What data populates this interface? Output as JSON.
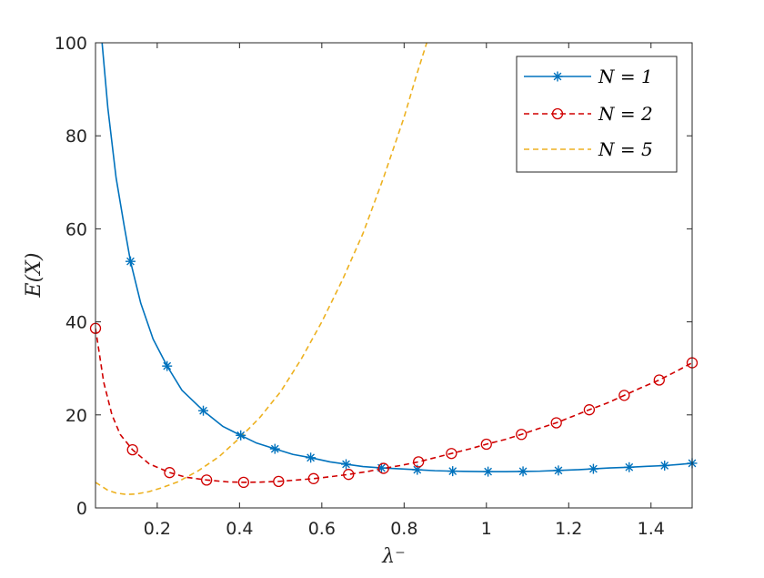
{
  "chart_data": {
    "type": "line",
    "title": "",
    "xlabel": "λ⁻",
    "ylabel": "E(X)",
    "xlim": [
      0.05,
      1.5
    ],
    "ylim": [
      0,
      100
    ],
    "xticks": [
      0.2,
      0.4,
      0.6,
      0.8,
      1,
      1.2,
      1.4
    ],
    "xtick_labels": [
      "0.2",
      "0.4",
      "0.6",
      "0.8",
      "1",
      "1.2",
      "1.4"
    ],
    "yticks": [
      0,
      20,
      40,
      60,
      80,
      100
    ],
    "ytick_labels": [
      "0",
      "20",
      "40",
      "60",
      "80",
      "100"
    ],
    "grid": false,
    "legend_position": "top-right",
    "series": [
      {
        "name": "N = 1",
        "color": "#0072BD",
        "line_style": "solid",
        "marker": "asterisk",
        "x": [
          0.066,
          0.08,
          0.1,
          0.12,
          0.135,
          0.16,
          0.19,
          0.224,
          0.26,
          0.312,
          0.36,
          0.403,
          0.44,
          0.486,
          0.53,
          0.573,
          0.62,
          0.659,
          0.7,
          0.745,
          0.79,
          0.832,
          0.875,
          0.918,
          0.96,
          1.004,
          1.047,
          1.089,
          1.13,
          1.175,
          1.22,
          1.26,
          1.3,
          1.347,
          1.39,
          1.433,
          1.47,
          1.5
        ],
        "y": [
          100,
          86.0,
          71.0,
          60.5,
          53.0,
          44.0,
          36.3,
          30.5,
          25.3,
          20.9,
          17.5,
          15.6,
          14.0,
          12.7,
          11.5,
          10.8,
          9.9,
          9.4,
          8.9,
          8.6,
          8.4,
          8.2,
          8.0,
          7.9,
          7.85,
          7.8,
          7.8,
          7.85,
          7.9,
          8.05,
          8.2,
          8.4,
          8.6,
          8.75,
          8.95,
          9.1,
          9.35,
          9.6
        ],
        "marker_x": [
          0.135,
          0.224,
          0.312,
          0.403,
          0.486,
          0.573,
          0.659,
          0.745,
          0.832,
          0.918,
          1.004,
          1.089,
          1.175,
          1.26,
          1.347,
          1.433,
          1.5
        ],
        "marker_y": [
          53.0,
          30.5,
          20.9,
          15.6,
          12.7,
          10.8,
          9.4,
          8.6,
          8.2,
          7.9,
          7.8,
          7.85,
          8.05,
          8.4,
          8.75,
          9.1,
          9.6
        ]
      },
      {
        "name": "N = 2",
        "color": "#D00000",
        "line_style": "dashed",
        "marker": "circle",
        "x": [
          0.05,
          0.07,
          0.09,
          0.11,
          0.14,
          0.18,
          0.23,
          0.27,
          0.32,
          0.37,
          0.41,
          0.45,
          0.495,
          0.54,
          0.58,
          0.62,
          0.665,
          0.71,
          0.75,
          0.79,
          0.835,
          0.875,
          0.915,
          0.96,
          1.0,
          1.045,
          1.085,
          1.125,
          1.17,
          1.21,
          1.25,
          1.295,
          1.335,
          1.375,
          1.42,
          1.46,
          1.5
        ],
        "y": [
          38.6,
          27.0,
          20.0,
          15.8,
          12.5,
          9.5,
          7.6,
          6.6,
          6.0,
          5.6,
          5.5,
          5.55,
          5.7,
          6.0,
          6.3,
          6.7,
          7.2,
          7.8,
          8.5,
          9.1,
          9.9,
          10.8,
          11.7,
          12.7,
          13.7,
          14.7,
          15.8,
          17.0,
          18.3,
          19.7,
          21.1,
          22.6,
          24.2,
          25.8,
          27.5,
          29.3,
          31.2
        ],
        "marker_x": [
          0.05,
          0.14,
          0.23,
          0.32,
          0.41,
          0.495,
          0.58,
          0.665,
          0.75,
          0.835,
          0.915,
          1.0,
          1.085,
          1.17,
          1.25,
          1.335,
          1.42,
          1.5
        ],
        "marker_y": [
          38.6,
          12.5,
          7.6,
          6.0,
          5.5,
          5.7,
          6.3,
          7.2,
          8.5,
          9.9,
          11.7,
          13.7,
          15.8,
          18.3,
          21.1,
          24.2,
          27.5,
          31.2
        ]
      },
      {
        "name": "N = 5",
        "color": "#EDB120",
        "line_style": "dashed",
        "marker": "none",
        "x": [
          0.05,
          0.08,
          0.1,
          0.125,
          0.15,
          0.18,
          0.21,
          0.25,
          0.3,
          0.35,
          0.4,
          0.45,
          0.5,
          0.55,
          0.6,
          0.65,
          0.7,
          0.75,
          0.8,
          0.83,
          0.855
        ],
        "y": [
          5.5,
          3.8,
          3.2,
          2.9,
          3.0,
          3.5,
          4.3,
          5.6,
          8.0,
          11.0,
          15.0,
          19.5,
          25.0,
          32.0,
          40.0,
          49.0,
          59.0,
          71.0,
          84.0,
          93.0,
          100.0
        ]
      }
    ]
  }
}
